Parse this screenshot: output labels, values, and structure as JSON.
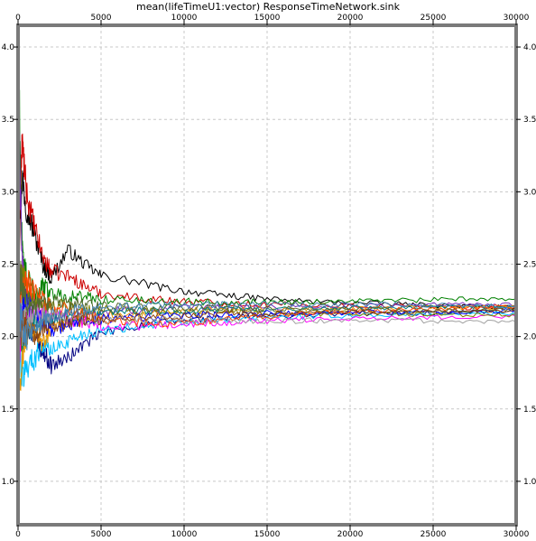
{
  "chart_data": {
    "type": "line",
    "title": "mean(lifeTimeU1:vector) ResponseTimeNetwork.sink",
    "xlabel": "",
    "ylabel": "",
    "xlim": [
      0,
      30000
    ],
    "ylim": [
      0.7,
      4.15
    ],
    "grid": true,
    "legend": "none",
    "x_ticks": [
      0,
      5000,
      10000,
      15000,
      20000,
      25000,
      30000
    ],
    "x_tick_labels": [
      "0",
      "5000",
      "10000",
      "15000",
      "20000",
      "25000",
      "30000"
    ],
    "y_ticks": [
      1.0,
      1.5,
      2.0,
      2.5,
      3.0,
      3.5,
      4.0
    ],
    "y_tick_labels": [
      "1.0",
      "1.5",
      "2.0",
      "2.5",
      "3.0",
      "3.5",
      "4.0"
    ],
    "x": [
      0,
      250,
      500,
      1000,
      1500,
      2000,
      3000,
      4000,
      5000,
      7000,
      9000,
      11000,
      13000,
      15000,
      18000,
      21000,
      24000,
      27000,
      30000
    ],
    "series": [
      {
        "color": "#000000",
        "values": [
          2.6,
          3.1,
          2.9,
          2.7,
          2.5,
          2.4,
          2.6,
          2.5,
          2.42,
          2.38,
          2.33,
          2.3,
          2.28,
          2.26,
          2.24,
          2.23,
          2.22,
          2.21,
          2.2
        ]
      },
      {
        "color": "#cc0000",
        "values": [
          2.4,
          3.35,
          3.0,
          2.75,
          2.55,
          2.45,
          2.42,
          2.35,
          2.3,
          2.27,
          2.25,
          2.24,
          2.23,
          2.22,
          2.22,
          2.21,
          2.21,
          2.2,
          2.2
        ]
      },
      {
        "color": "#000080",
        "values": [
          1.8,
          2.3,
          2.1,
          2.0,
          1.9,
          1.8,
          1.85,
          1.95,
          2.02,
          2.07,
          2.1,
          2.12,
          2.13,
          2.14,
          2.15,
          2.16,
          2.16,
          2.17,
          2.17
        ]
      },
      {
        "color": "#00bfff",
        "values": [
          2.0,
          1.7,
          1.8,
          1.85,
          1.95,
          1.9,
          1.97,
          2.02,
          2.04,
          2.07,
          2.09,
          2.1,
          2.12,
          2.13,
          2.14,
          2.15,
          2.15,
          2.16,
          2.16
        ]
      },
      {
        "color": "#008000",
        "values": [
          4.1,
          2.55,
          2.4,
          2.3,
          2.35,
          2.3,
          2.28,
          2.27,
          2.26,
          2.25,
          2.24,
          2.24,
          2.24,
          2.24,
          2.24,
          2.25,
          2.25,
          2.26,
          2.26
        ]
      },
      {
        "color": "#7b2fbe",
        "values": [
          3.7,
          2.5,
          2.2,
          2.1,
          2.15,
          2.1,
          2.12,
          2.15,
          2.17,
          2.18,
          2.19,
          2.2,
          2.2,
          2.2,
          2.21,
          2.21,
          2.22,
          2.22,
          2.22
        ]
      },
      {
        "color": "#e69500",
        "values": [
          1.3,
          1.9,
          2.0,
          2.05,
          1.95,
          2.05,
          2.1,
          2.12,
          2.14,
          2.16,
          2.17,
          2.18,
          2.18,
          2.19,
          2.19,
          2.19,
          2.2,
          2.2,
          2.2
        ]
      },
      {
        "color": "#ff00ff",
        "values": [
          1.6,
          2.2,
          2.15,
          2.2,
          2.18,
          2.15,
          2.12,
          2.1,
          2.08,
          2.07,
          2.08,
          2.09,
          2.1,
          2.11,
          2.12,
          2.13,
          2.13,
          2.14,
          2.14
        ]
      },
      {
        "color": "#808000",
        "values": [
          2.2,
          2.45,
          2.3,
          2.25,
          2.2,
          2.22,
          2.2,
          2.19,
          2.18,
          2.18,
          2.17,
          2.17,
          2.17,
          2.16,
          2.16,
          2.16,
          2.15,
          2.15,
          2.15
        ]
      },
      {
        "color": "#008080",
        "values": [
          2.1,
          2.0,
          2.05,
          2.1,
          2.08,
          2.12,
          2.14,
          2.15,
          2.16,
          2.17,
          2.18,
          2.18,
          2.19,
          2.19,
          2.2,
          2.2,
          2.2,
          2.21,
          2.21
        ]
      },
      {
        "color": "#0000ff",
        "values": [
          2.3,
          2.2,
          2.25,
          2.15,
          2.1,
          2.05,
          2.08,
          2.1,
          2.12,
          2.13,
          2.14,
          2.15,
          2.15,
          2.16,
          2.16,
          2.17,
          2.17,
          2.17,
          2.18
        ]
      },
      {
        "color": "#ff4500",
        "values": [
          2.0,
          2.35,
          2.4,
          2.3,
          2.25,
          2.2,
          2.18,
          2.15,
          2.12,
          2.1,
          2.08,
          2.1,
          2.12,
          2.14,
          2.16,
          2.18,
          2.19,
          2.2,
          2.21
        ]
      },
      {
        "color": "#a0a0a0",
        "values": [
          2.1,
          2.05,
          2.12,
          2.18,
          2.15,
          2.14,
          2.13,
          2.12,
          2.12,
          2.11,
          2.11,
          2.11,
          2.11,
          2.11,
          2.11,
          2.11,
          2.11,
          2.1,
          2.1
        ]
      },
      {
        "color": "#556b2f",
        "values": [
          2.5,
          2.3,
          2.25,
          2.2,
          2.22,
          2.24,
          2.23,
          2.22,
          2.21,
          2.2,
          2.2,
          2.2,
          2.19,
          2.19,
          2.19,
          2.19,
          2.18,
          2.18,
          2.18
        ]
      },
      {
        "color": "#8b4513",
        "values": [
          1.9,
          2.05,
          2.1,
          2.0,
          2.05,
          2.08,
          2.1,
          2.11,
          2.12,
          2.13,
          2.14,
          2.15,
          2.16,
          2.16,
          2.17,
          2.17,
          2.17,
          2.18,
          2.18
        ]
      },
      {
        "color": "#4682b4",
        "values": [
          2.2,
          2.1,
          2.0,
          2.05,
          2.1,
          2.14,
          2.17,
          2.19,
          2.2,
          2.21,
          2.22,
          2.22,
          2.22,
          2.22,
          2.22,
          2.22,
          2.22,
          2.21,
          2.21
        ]
      }
    ]
  }
}
